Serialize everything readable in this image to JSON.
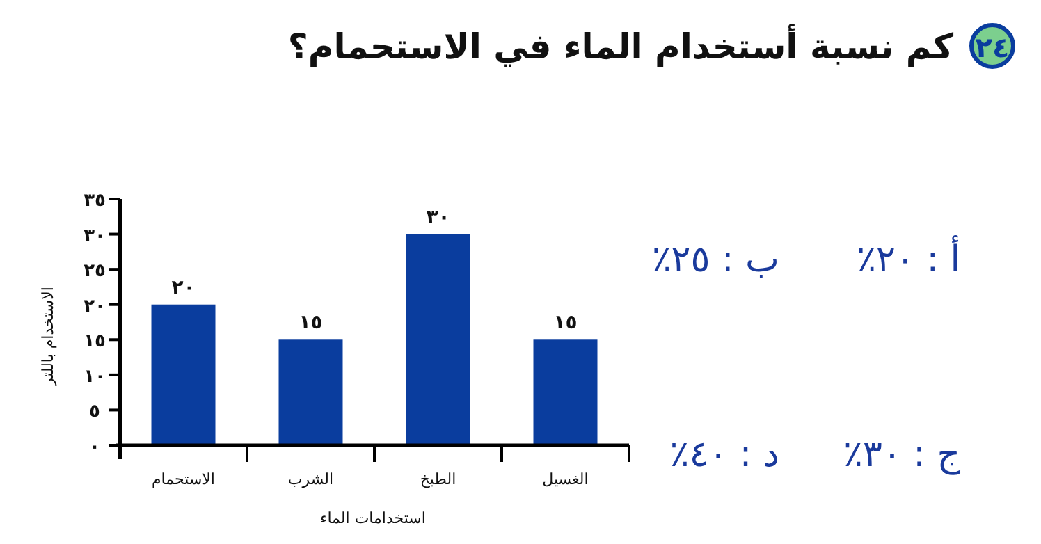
{
  "chart_data": {
    "type": "bar",
    "title": "كم نسبة أستخدام الماء في الاستحمام؟",
    "xlabel": "استخدامات الماء",
    "ylabel": "الاستخدام باللتر",
    "categories": [
      "الاستحمام",
      "الشرب",
      "الطبخ",
      "الغسيل"
    ],
    "values": [
      20,
      15,
      30,
      15
    ],
    "value_labels": [
      "٢٠",
      "١٥",
      "٣٠",
      "١٥"
    ],
    "color": "#0a3d9e",
    "ylim": [
      0,
      35
    ],
    "yticks": [
      {
        "value": 0,
        "label": "٠"
      },
      {
        "value": 5,
        "label": "٥"
      },
      {
        "value": 10,
        "label": "١٠"
      },
      {
        "value": 15,
        "label": "١٥"
      },
      {
        "value": 20,
        "label": "٢٠"
      },
      {
        "value": 25,
        "label": "٢٥"
      },
      {
        "value": 30,
        "label": "٣٠"
      },
      {
        "value": 35,
        "label": "٣٥"
      }
    ],
    "annotations": [
      "٢٤",
      "أ : ٢٠٪",
      "ب : ٢٥٪",
      "ج : ٣٠٪",
      "د : ٤٠٪"
    ]
  }
}
